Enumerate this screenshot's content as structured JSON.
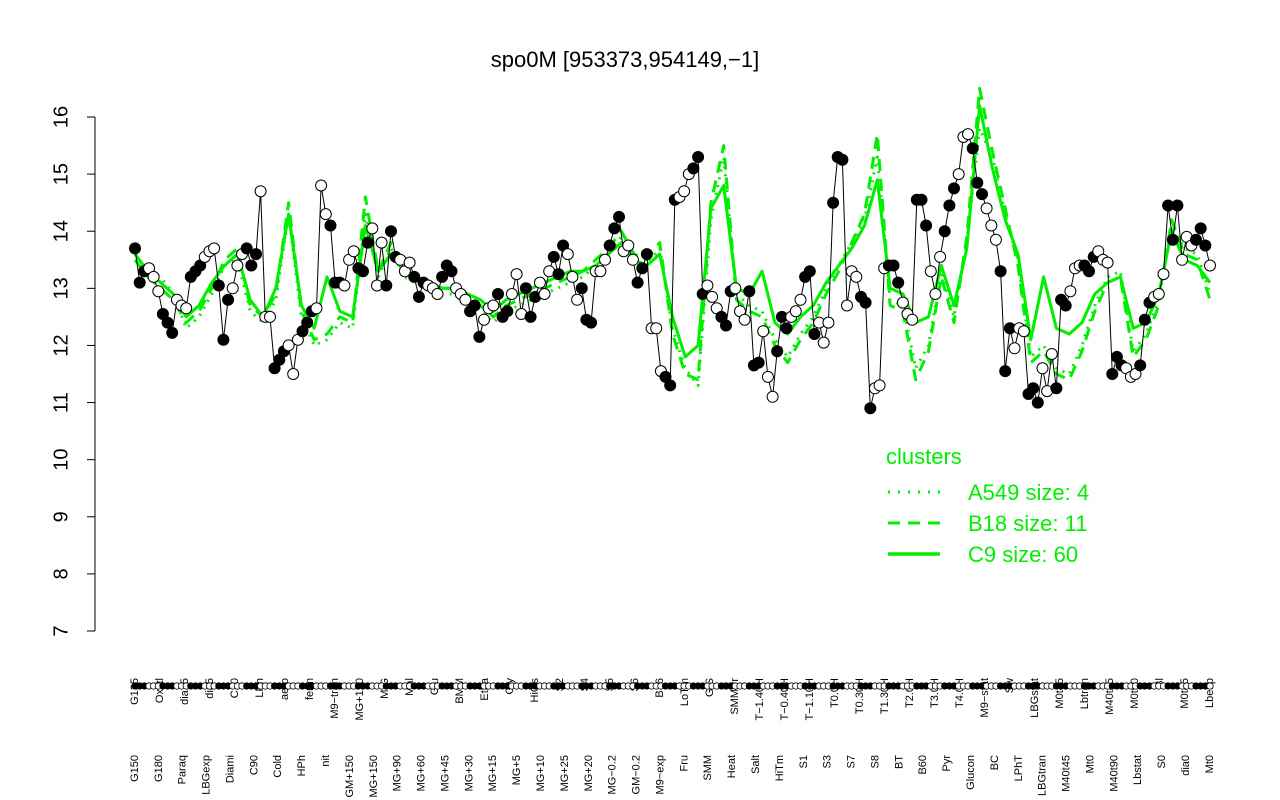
{
  "chart_data": {
    "type": "line",
    "title": "spo0M [953373,954149,−1]",
    "xlabel": "",
    "ylabel": "",
    "ylim": [
      7,
      16
    ],
    "y_ticks": [
      7,
      8,
      9,
      10,
      11,
      12,
      13,
      14,
      15,
      16
    ],
    "grid": false,
    "x_ticks_top": [
      "G135",
      "Oxctl",
      "dia15",
      "dia5",
      "C30",
      "LPh",
      "aero",
      "ferm",
      "M9−tran",
      "MG+120",
      "M/G",
      "Mal",
      "Glu",
      "BMM",
      "Etha",
      "Gly",
      "HiOs",
      "S2",
      "S4",
      "S5",
      "S6",
      "B36",
      "LoTm",
      "G/S",
      "SMMPr",
      "T−1.40H",
      "T−0.40H",
      "T−1.10H",
      "T0.0H",
      "T0.30H",
      "T1.30H",
      "T2.0H",
      "T3.0H",
      "T4.0H",
      "M9−stat",
      "Sw",
      "LBGstat",
      "M0t45",
      "Lbtran",
      "M40t45",
      "M0t90",
      "Bl",
      "M0t45",
      "Lbexp"
    ],
    "x_ticks_bottom": [
      "G150",
      "G180",
      "Paraq",
      "LBGexp",
      "Diami",
      "C90",
      "Cold",
      "HPh",
      "nit",
      "GM+150",
      "MG+150",
      "MG+90",
      "MG+60",
      "MG+45",
      "MG+30",
      "MG+15",
      "MG+5",
      "MG+10",
      "MG+25",
      "MG+20",
      "MG−0.2",
      "GM−0.2",
      "M9−exp",
      "Fru",
      "SMM",
      "Heat",
      "Salt",
      "HiTm",
      "S1",
      "S3",
      "S7",
      "S8",
      "BT",
      "B60",
      "Pyr",
      "Glucon",
      "BC",
      "LPhT",
      "LBGtran",
      "M40t45",
      "Mt0",
      "M40t90",
      "Lbstat",
      "S0",
      "dia0",
      "Mt0"
    ],
    "series": [
      {
        "values": [
          13.7,
          13.1,
          13.3,
          13.35,
          13.2,
          12.95,
          12.55,
          12.4,
          12.22,
          12.8,
          12.7,
          12.65,
          13.2,
          13.3,
          13.4,
          13.55,
          13.65,
          13.7,
          13.05,
          12.1,
          12.8,
          13.0,
          13.4,
          13.6,
          13.7,
          13.4,
          13.6,
          14.7,
          12.5,
          12.5,
          11.6,
          11.75,
          11.9,
          12.0,
          11.5,
          12.1,
          12.25,
          12.4,
          12.6,
          12.65,
          14.8,
          14.3,
          14.1,
          13.1,
          13.1,
          13.05,
          13.5,
          13.65,
          13.35,
          13.3,
          13.8,
          14.05,
          13.05,
          13.8,
          13.05,
          14.0,
          13.55,
          13.5,
          13.3,
          13.45,
          13.2,
          12.85,
          13.1,
          13.05,
          13.0,
          12.9,
          13.2,
          13.4,
          13.3,
          13.0,
          12.9,
          12.8,
          12.6,
          12.7,
          12.15,
          12.45,
          12.65,
          12.7,
          12.9,
          12.5,
          12.6,
          12.9,
          13.25,
          12.55,
          13.0,
          12.5,
          12.85,
          13.1,
          12.9,
          13.3,
          13.55,
          13.25,
          13.75,
          13.6,
          13.2,
          12.8,
          13.0,
          12.45,
          12.4,
          13.3,
          13.3,
          13.5,
          13.75,
          14.05,
          14.25,
          13.65,
          13.75,
          13.5,
          13.1,
          13.35,
          13.6,
          12.3,
          12.3,
          11.55,
          11.45,
          11.3,
          14.55,
          14.6,
          14.7,
          15.0,
          15.1,
          15.3,
          12.9,
          13.05,
          12.85,
          12.65,
          12.5,
          12.35,
          12.95,
          13.0,
          12.6,
          12.45,
          12.95,
          11.65,
          11.7,
          12.25,
          11.45,
          11.1,
          11.9,
          12.5,
          12.3,
          12.5,
          12.6,
          12.8,
          13.2,
          13.3,
          12.2,
          12.4,
          12.05,
          12.4,
          14.5,
          15.3,
          15.25,
          12.7,
          13.3,
          13.2,
          12.85,
          12.75,
          10.9,
          11.25,
          11.3,
          13.35,
          13.4,
          13.4,
          13.1,
          12.75,
          12.55,
          12.45,
          14.55,
          14.55,
          14.1,
          13.3,
          12.9,
          13.55,
          14.0,
          14.45,
          14.75,
          15.0,
          15.65,
          15.7,
          15.45,
          14.85,
          14.65,
          14.4,
          14.1,
          13.85,
          13.3,
          11.55,
          12.3,
          11.95,
          12.3,
          12.25,
          11.15,
          11.25,
          11.0,
          11.6,
          11.2,
          11.85,
          11.25,
          12.8,
          12.7,
          12.95,
          13.35,
          13.4,
          13.4,
          13.3,
          13.55,
          13.65,
          13.5,
          13.45,
          11.5,
          11.8,
          11.65,
          11.6,
          11.45,
          11.5,
          11.65,
          12.45,
          12.75,
          12.85,
          12.9,
          13.25,
          14.45,
          13.85,
          14.45,
          13.5,
          13.9,
          13.75,
          13.85,
          14.05,
          13.75,
          13.4
        ]
      },
      {
        "name": "A549 size: 4",
        "values": [
          13.6,
          13.3,
          13.2,
          12.9,
          12.3,
          12.5,
          12.9,
          13.4,
          13.5,
          12.6,
          12.4,
          12.8,
          14.3,
          12.5,
          12.0,
          12.1,
          12.4,
          12.3,
          14.3,
          13.2,
          13.7,
          13.2,
          13.1,
          13.0,
          12.9,
          12.9,
          12.8,
          12.6,
          12.4,
          12.6,
          12.7,
          12.8,
          12.9,
          13.0,
          13.1,
          13.2,
          13.4,
          13.6,
          13.9,
          13.5,
          13.4,
          13.7,
          12.3,
          11.6,
          11.3,
          14.2,
          15.3,
          12.9,
          12.7,
          12.6,
          12.1,
          11.8,
          12.2,
          12.5,
          13.0,
          13.4,
          13.8,
          14.2,
          15.3,
          12.8,
          12.7,
          11.6,
          12.0,
          13.3,
          12.5,
          13.8,
          15.8,
          15.3,
          14.3,
          13.5,
          11.8,
          12.0,
          11.6,
          11.5,
          12.0,
          12.7,
          13.2,
          13.3,
          11.9,
          12.2,
          12.8,
          14.1,
          13.7,
          13.6,
          12.9
        ]
      },
      {
        "name": "B18 size: 11",
        "values": [
          13.5,
          13.2,
          13.0,
          12.8,
          12.4,
          12.6,
          13.0,
          13.5,
          13.7,
          12.7,
          12.5,
          12.9,
          14.5,
          12.6,
          12.1,
          12.2,
          12.5,
          12.4,
          14.6,
          13.3,
          13.8,
          13.3,
          13.2,
          13.1,
          13.0,
          13.0,
          12.9,
          12.7,
          12.5,
          12.7,
          12.8,
          12.9,
          13.0,
          13.1,
          13.2,
          13.3,
          13.5,
          13.7,
          14.0,
          13.6,
          13.5,
          13.8,
          12.2,
          11.5,
          11.4,
          14.5,
          15.5,
          12.8,
          12.6,
          12.5,
          12.0,
          11.7,
          12.1,
          12.4,
          12.9,
          13.3,
          13.8,
          14.3,
          15.7,
          12.7,
          12.6,
          11.4,
          11.9,
          13.2,
          12.4,
          13.9,
          16.5,
          15.4,
          14.4,
          13.4,
          11.7,
          11.9,
          11.5,
          11.4,
          11.9,
          12.6,
          13.1,
          13.2,
          11.8,
          12.1,
          12.7,
          14.2,
          13.6,
          13.5,
          12.8
        ]
      },
      {
        "name": "C9 size: 60",
        "values": [
          13.6,
          13.3,
          13.1,
          12.9,
          12.5,
          12.7,
          13.1,
          13.4,
          13.6,
          12.8,
          12.5,
          13.0,
          14.3,
          12.7,
          12.3,
          13.2,
          12.6,
          12.5,
          14.1,
          13.3,
          13.6,
          13.3,
          13.2,
          13.1,
          13.0,
          13.0,
          12.9,
          12.8,
          12.6,
          12.8,
          12.9,
          13.0,
          13.1,
          13.2,
          13.3,
          13.3,
          13.4,
          13.6,
          13.8,
          13.5,
          13.4,
          13.6,
          12.5,
          11.8,
          12.0,
          14.4,
          14.8,
          13.0,
          12.9,
          13.3,
          12.4,
          12.2,
          12.5,
          12.7,
          13.1,
          13.4,
          13.7,
          14.1,
          14.9,
          13.0,
          12.9,
          12.4,
          12.5,
          13.4,
          12.7,
          13.7,
          16.2,
          15.1,
          14.2,
          13.6,
          12.1,
          13.2,
          12.3,
          12.2,
          12.4,
          12.9,
          13.1,
          13.2,
          12.3,
          12.4,
          12.9,
          14.0,
          13.5,
          13.4,
          13.1
        ]
      }
    ],
    "legend": {
      "title": "clusters",
      "position": "right",
      "entries": [
        "A549 size: 4",
        "B18 size: 11",
        "C9 size: 60"
      ]
    }
  },
  "colors": {
    "cluster_line": "#00ee00",
    "points_filled": "#000000",
    "points_open": "#ffffff",
    "axis": "#000000"
  }
}
